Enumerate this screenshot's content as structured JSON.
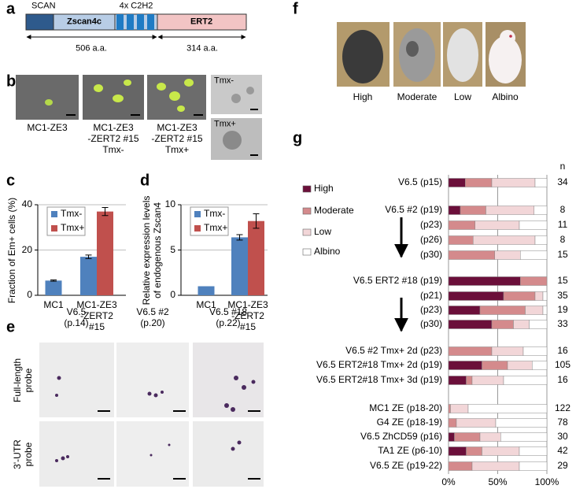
{
  "panel_labels": [
    "a",
    "b",
    "c",
    "d",
    "e",
    "f",
    "g"
  ],
  "panel_a": {
    "domains": [
      "SCAN",
      "Zscan4c",
      "4x C2H2",
      "ERT2"
    ],
    "lengths": [
      "506 a.a.",
      "314 a.a."
    ]
  },
  "panel_b": {
    "captions": [
      "MC1-ZE3",
      "MC1-ZE3\n-ZERT2 #15\nTmx-",
      "MC1-ZE3\n-ZERT2 #15\nTmx+"
    ],
    "inset_labels": [
      "Tmx-",
      "Tmx+"
    ]
  },
  "panel_e": {
    "columns": [
      "V6.5\n(p.14)",
      "V6.5 #2\n(p.20)",
      "V6.5 #18\n(p.22)"
    ],
    "rows": [
      "Full-length\nprobe",
      "3'-UTR\nprobe"
    ]
  },
  "panel_f": {
    "labels": [
      "High",
      "Moderate",
      "Low",
      "Albino"
    ]
  },
  "chart_data": [
    {
      "type": "bar",
      "ylabel": "Fraction of Em+ cells (%)",
      "categories": [
        "MC1",
        "MC1-ZE3\n-ZERT2\n#15"
      ],
      "series": [
        {
          "name": "Tmx-",
          "color": "#4f81bd",
          "values": [
            6.5,
            17
          ],
          "errors": [
            0.3,
            0.8
          ]
        },
        {
          "name": "Tmx+",
          "color": "#c0504d",
          "values": [
            null,
            37
          ],
          "errors": [
            null,
            1.8
          ]
        }
      ],
      "ylim": [
        0,
        40
      ],
      "yticks": [
        0,
        20,
        40
      ],
      "grid": true,
      "legend": "upper left"
    },
    {
      "type": "bar",
      "ylabel": "Relative expression levels\nof endogenous Zscan4",
      "categories": [
        "MC1",
        "MC1-ZE3\n-ZERT2\n#15"
      ],
      "series": [
        {
          "name": "Tmx-",
          "color": "#4f81bd",
          "values": [
            1,
            6.4
          ],
          "errors": [
            null,
            0.3
          ]
        },
        {
          "name": "Tmx+",
          "color": "#c0504d",
          "values": [
            null,
            8.2
          ],
          "errors": [
            null,
            0.8
          ]
        }
      ],
      "ylim": [
        0,
        10
      ],
      "yticks": [
        0,
        5,
        10
      ],
      "grid": true,
      "legend": "upper left"
    },
    {
      "type": "stacked_barh",
      "categories": [
        "V6.5 (p15)",
        "V6.5 #2 (p19)",
        "(p23)",
        "(p26)",
        "(p30)",
        "V6.5 ERT2 #18 (p19)",
        "(p21)",
        "(p23)",
        "(p30)",
        "V6.5 #2 Tmx+ 2d (p23)",
        "V6.5 ERT2#18 Tmx+ 2d (p19)",
        "V6.5 ERT2#18 Tmx+ 3d (p19)",
        "MC1 ZE (p18-20)",
        "G4 ZE (p18-19)",
        "V6.5 ZhCD59 (p16)",
        "TA1 ZE (p6-10)",
        "V6.5 ZE (p19-22)"
      ],
      "series": [
        {
          "name": "High",
          "color": "#6b0f3a",
          "values": [
            17,
            12,
            0,
            0,
            0,
            73,
            56,
            32,
            44,
            0,
            34,
            18,
            0,
            0,
            6,
            18,
            0
          ]
        },
        {
          "name": "Moderate",
          "color": "#d48a8c",
          "values": [
            27,
            26,
            27,
            25,
            47,
            27,
            32,
            46,
            22,
            44,
            26,
            6,
            2,
            8,
            26,
            16,
            24
          ]
        },
        {
          "name": "Low",
          "color": "#f2d6d8",
          "values": [
            44,
            49,
            45,
            63,
            26,
            0,
            8,
            18,
            16,
            32,
            25,
            32,
            18,
            40,
            21,
            38,
            48
          ]
        },
        {
          "name": "Albino",
          "color": "#ffffff",
          "values": [
            12,
            13,
            28,
            12,
            27,
            0,
            4,
            4,
            18,
            24,
            15,
            44,
            80,
            52,
            47,
            28,
            28
          ]
        }
      ],
      "n_header": "n",
      "n_values": [
        34,
        8,
        11,
        8,
        15,
        15,
        35,
        19,
        33,
        16,
        105,
        16,
        122,
        78,
        30,
        42,
        29
      ],
      "xlim": [
        0,
        100
      ],
      "xticks": [
        {
          "value": 0,
          "label": "0%"
        },
        {
          "value": 50,
          "label": "50%"
        },
        {
          "value": 100,
          "label": "100%"
        }
      ],
      "grid": true,
      "legend": "left"
    }
  ]
}
